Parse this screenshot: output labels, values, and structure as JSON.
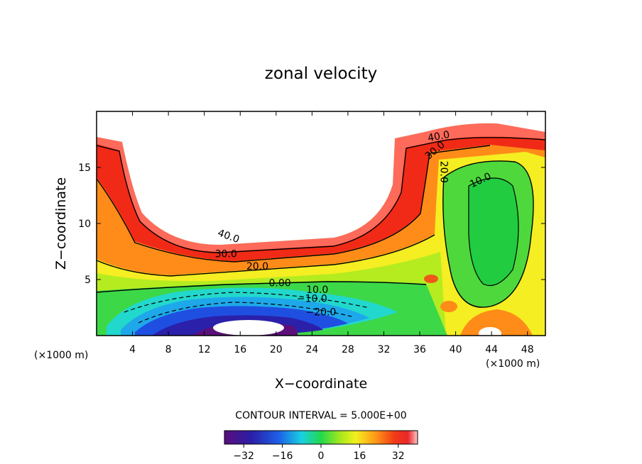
{
  "chart_data": {
    "type": "contour",
    "title": "zonal velocity",
    "xlabel": "X−coordinate",
    "ylabel": "Z−coordinate",
    "x_unit": "(×1000 m)",
    "y_unit": "(×1000 m)",
    "xlim": [
      0,
      50
    ],
    "ylim": [
      0,
      20
    ],
    "x_ticks": [
      4,
      8,
      12,
      16,
      20,
      24,
      28,
      32,
      36,
      40,
      44,
      48
    ],
    "x_tick_labels": [
      "4",
      "8",
      "12",
      "16",
      "20",
      "24",
      "28",
      "32",
      "36",
      "40",
      "44",
      "48"
    ],
    "y_ticks": [
      5,
      10,
      15
    ],
    "y_tick_labels": [
      "5",
      "10",
      "15"
    ],
    "contour_interval_text": "CONTOUR INTERVAL = 5.000E+00",
    "contour_interval": 5.0,
    "contour_labels": [
      {
        "text": "40.0",
        "x": 17.5,
        "y": 8.6,
        "rotate": 20
      },
      {
        "text": "30.0",
        "x": 17.3,
        "y": 7.0,
        "rotate": 0
      },
      {
        "text": "20.0",
        "x": 21.5,
        "y": 5.9,
        "rotate": 0
      },
      {
        "text": "0.00",
        "x": 24.5,
        "y": 4.4,
        "rotate": 0
      },
      {
        "text": "10.0",
        "x": 29.5,
        "y": 3.8,
        "rotate": 0
      },
      {
        "text": "−10.0",
        "x": 28.8,
        "y": 3.0,
        "rotate": 0
      },
      {
        "text": "−20.0",
        "x": 30.0,
        "y": 1.8,
        "rotate": 0
      },
      {
        "text": "40.0",
        "x": 45.8,
        "y": 17.5,
        "rotate": -10
      },
      {
        "text": "30.0",
        "x": 45.5,
        "y": 16.3,
        "rotate": -40
      },
      {
        "text": "20.0",
        "x": 46.0,
        "y": 14.6,
        "rotate": 90
      },
      {
        "text": "10.0",
        "x": 51.5,
        "y": 13.6,
        "rotate": -25
      }
    ],
    "colorbar": {
      "range": [
        -40,
        40
      ],
      "ticks": [
        -32,
        -16,
        0,
        16,
        32
      ],
      "tick_labels": [
        "−32",
        "−16",
        "0",
        "16",
        "32"
      ]
    }
  }
}
